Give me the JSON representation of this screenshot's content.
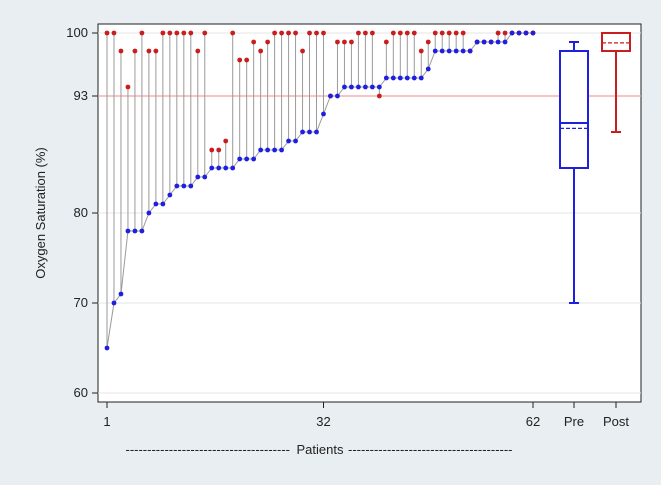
{
  "chart_data": {
    "type": "dumbbell+boxplot",
    "ylabel": "Oxygen Saturation (%)",
    "xlabel": "Patients",
    "xlabel_rule": "--------------------------------------",
    "ylim": [
      59,
      101
    ],
    "yticks": [
      60,
      70,
      80,
      93,
      100
    ],
    "reference_line": 93,
    "colors": {
      "pre": "#1f1fe0",
      "post": "#c81e1e",
      "stem": "#9a9a9a",
      "refline": "#f0a0a0",
      "grid": "#e4e4e4"
    },
    "x_ticks": [
      "1",
      "32",
      "62",
      "Pre",
      "Post"
    ],
    "patients": {
      "pre": [
        65,
        70,
        71,
        78,
        78,
        78,
        80,
        81,
        81,
        82,
        83,
        83,
        83,
        84,
        84,
        85,
        85,
        85,
        85,
        86,
        86,
        86,
        87,
        87,
        87,
        87,
        88,
        88,
        89,
        89,
        89,
        91,
        93,
        93,
        94,
        94,
        94,
        94,
        94,
        94,
        95,
        95,
        95,
        95,
        95,
        95,
        96,
        98,
        98,
        98,
        98,
        98,
        98,
        99,
        99,
        99,
        99,
        99,
        100,
        100,
        100,
        100
      ],
      "post": [
        100,
        100,
        98,
        94,
        98,
        100,
        98,
        98,
        100,
        100,
        100,
        100,
        100,
        98,
        100,
        87,
        87,
        88,
        100,
        97,
        97,
        99,
        98,
        99,
        100,
        100,
        100,
        100,
        98,
        100,
        100,
        100,
        93,
        99,
        99,
        99,
        100,
        100,
        100,
        93,
        99,
        100,
        100,
        100,
        100,
        98,
        99,
        100,
        100,
        100,
        100,
        100,
        98,
        99,
        99,
        99,
        100,
        100,
        100,
        100,
        100,
        100
      ]
    },
    "boxplots": [
      {
        "name": "Pre",
        "whisker_low": 70,
        "q1": 85,
        "median": 90,
        "mean": 89.4,
        "q3": 98,
        "whisker_high": 99
      },
      {
        "name": "Post",
        "whisker_low": 89,
        "q1": 98,
        "median": 100,
        "mean": 98.9,
        "q3": 100,
        "whisker_high": 100
      }
    ]
  }
}
